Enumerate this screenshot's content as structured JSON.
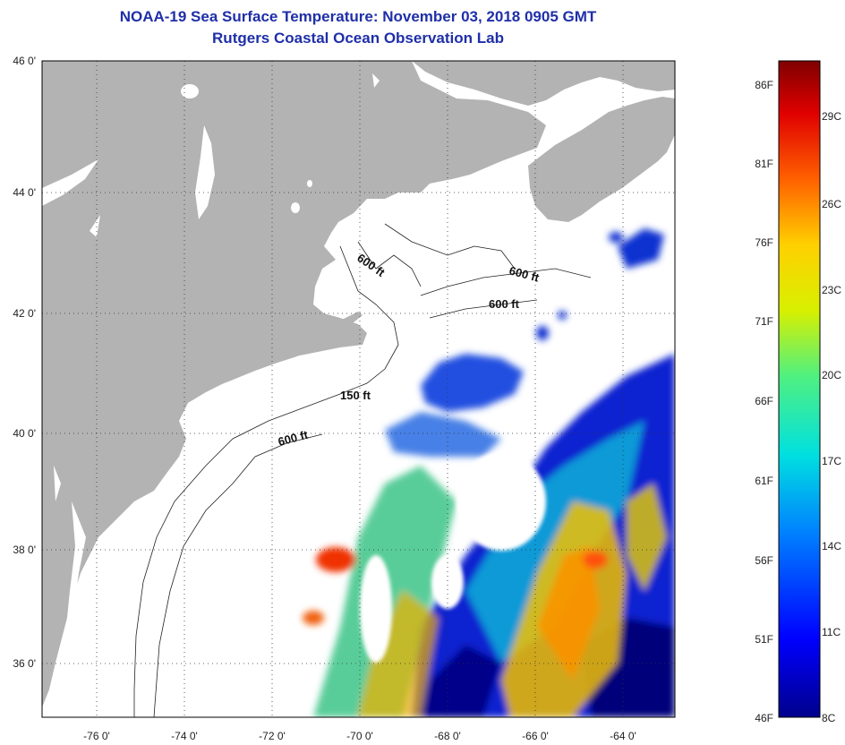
{
  "title": "NOAA-19 Sea Surface Temperature:  November 03, 2018 0905 GMT",
  "subtitle": "Rutgers Coastal Ocean Observation Lab",
  "lat_labels": [
    "46 0'",
    "44 0'",
    "42 0'",
    "40 0'",
    "38 0'",
    "36 0'"
  ],
  "lon_labels": [
    "-76 0'",
    "-74 0'",
    "-72 0'",
    "-70 0'",
    "-68 0'",
    "-66 0'",
    "-64 0'"
  ],
  "isobath_labels": [
    "600 ft",
    "600 ft",
    "600 ft",
    "150 ft",
    "600 ft"
  ],
  "colorbar": {
    "f_labels": [
      "86F",
      "81F",
      "76F",
      "71F",
      "66F",
      "61F",
      "56F",
      "51F",
      "46F"
    ],
    "c_labels": [
      "29C",
      "26C",
      "23C",
      "20C",
      "17C",
      "14C",
      "11C",
      "8C"
    ]
  },
  "colors": {
    "land": "#b3b3b3",
    "title": "#1f2fa8"
  }
}
